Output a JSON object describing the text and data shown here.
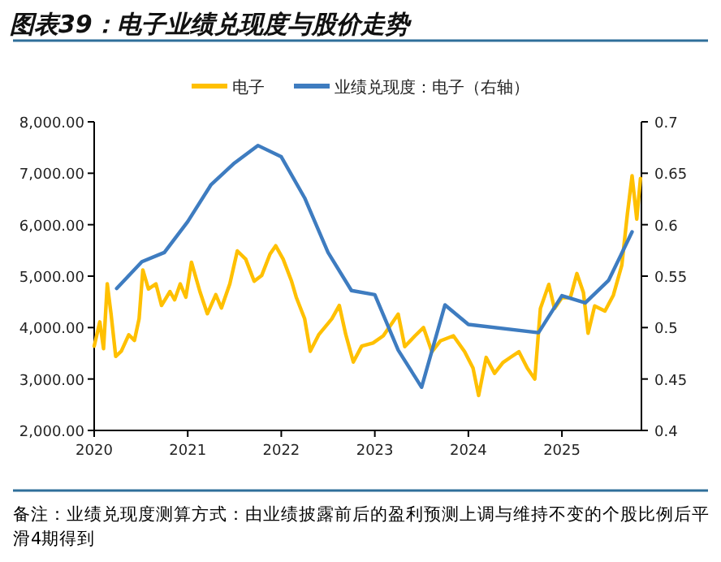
{
  "chart_data": {
    "type": "line",
    "title": "图表39：电子业绩兑现度与股价走势",
    "legend": "top",
    "grid": false,
    "xlim": [
      2020,
      2025.85
    ],
    "xticks": [
      2020,
      2021,
      2022,
      2023,
      2024,
      2025
    ],
    "ylim": [
      2000,
      8000
    ],
    "yticks": [
      {
        "value": 2000,
        "label": "2,000.00"
      },
      {
        "value": 3000,
        "label": "3,000.00"
      },
      {
        "value": 4000,
        "label": "4,000.00"
      },
      {
        "value": 5000,
        "label": "5,000.00"
      },
      {
        "value": 6000,
        "label": "6,000.00"
      },
      {
        "value": 7000,
        "label": "7,000.00"
      },
      {
        "value": 8000,
        "label": "8,000.00"
      }
    ],
    "y2lim": [
      0.4,
      0.7
    ],
    "y2ticks": [
      0.4,
      0.45,
      0.5,
      0.55,
      0.6,
      0.65,
      0.7
    ],
    "annotations": [
      "备注：业绩兑现度测算方式：由业绩披露前后的盈利预测上调与维持不变的个股比例后平滑4期得到"
    ],
    "series": [
      {
        "name": "电子",
        "color": "#ffc000",
        "x": [
          2020.0,
          2020.06,
          2020.1,
          2020.14,
          2020.18,
          2020.23,
          2020.29,
          2020.37,
          2020.43,
          2020.48,
          2020.52,
          2020.58,
          2020.66,
          2020.72,
          2020.81,
          2020.86,
          2020.92,
          2020.98,
          2021.04,
          2021.13,
          2021.21,
          2021.3,
          2021.36,
          2021.45,
          2021.53,
          2021.62,
          2021.71,
          2021.79,
          2021.88,
          2021.94,
          2022.02,
          2022.11,
          2022.16,
          2022.25,
          2022.31,
          2022.4,
          2022.49,
          2022.54,
          2022.62,
          2022.69,
          2022.77,
          2022.86,
          2022.98,
          2023.09,
          2023.17,
          2023.25,
          2023.32,
          2023.43,
          2023.52,
          2023.61,
          2023.7,
          2023.84,
          2023.96,
          2024.05,
          2024.11,
          2024.19,
          2024.28,
          2024.37,
          2024.45,
          2024.54,
          2024.63,
          2024.71,
          2024.77,
          2024.86,
          2024.92,
          2025.0,
          2025.09,
          2025.16,
          2025.23,
          2025.28,
          2025.35,
          2025.46,
          2025.55,
          2025.64,
          2025.7,
          2025.75,
          2025.8,
          2025.84
        ],
        "values": [
          3640,
          4110,
          3590,
          4850,
          4270,
          3440,
          3540,
          3860,
          3750,
          4170,
          5120,
          4750,
          4850,
          4430,
          4700,
          4540,
          4850,
          4590,
          5270,
          4700,
          4270,
          4640,
          4380,
          4850,
          5490,
          5330,
          4900,
          5010,
          5430,
          5590,
          5330,
          4900,
          4590,
          4170,
          3540,
          3860,
          4060,
          4170,
          4430,
          3860,
          3330,
          3640,
          3700,
          3840,
          4050,
          4260,
          3630,
          3840,
          4000,
          3530,
          3740,
          3840,
          3530,
          3210,
          2680,
          3420,
          3110,
          3320,
          3420,
          3530,
          3210,
          3000,
          4370,
          4840,
          4370,
          4580,
          4580,
          5050,
          4680,
          3890,
          4420,
          4320,
          4630,
          5210,
          6210,
          6950,
          6110,
          6900
        ]
      },
      {
        "name": "业绩兑现度：电子（右轴）",
        "color": "#3e7cc0",
        "axis": "y2",
        "x": [
          2020.24,
          2020.51,
          2020.75,
          2021.0,
          2021.25,
          2021.5,
          2021.75,
          2022.0,
          2022.25,
          2022.5,
          2022.75,
          2023.0,
          2023.25,
          2023.5,
          2023.75,
          2024.0,
          2024.75,
          2025.0,
          2025.25,
          2025.5,
          2025.75
        ],
        "values": [
          0.538,
          0.564,
          0.573,
          0.603,
          0.639,
          0.66,
          0.677,
          0.666,
          0.626,
          0.573,
          0.536,
          0.532,
          0.478,
          0.442,
          0.522,
          0.503,
          0.495,
          0.531,
          0.524,
          0.546,
          0.593
        ]
      }
    ]
  }
}
